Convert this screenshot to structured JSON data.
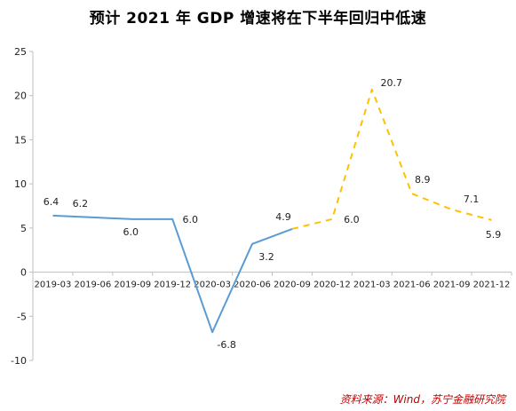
{
  "title": "预计 2021 年 GDP 增速将在下半年回归中低速",
  "source": "资料来源：Wind，苏宁金融研究院",
  "chart_data": {
    "type": "line",
    "title": "预计 2021 年 GDP 增速将在下半年回归中低速",
    "xlabel": "",
    "ylabel": "",
    "ylim": [
      -10,
      25
    ],
    "yticks": [
      -10,
      -5,
      0,
      5,
      10,
      15,
      20,
      25
    ],
    "grid": false,
    "categories": [
      "2019-03",
      "2019-06",
      "2019-09",
      "2019-12",
      "2020-03",
      "2020-06",
      "2020-09",
      "2020-12",
      "2021-03",
      "2021-06",
      "2021-09",
      "2021-12"
    ],
    "series": [
      {
        "style": "solid",
        "color": "#5b9bd5",
        "points": [
          [
            "2019-03",
            6.4
          ],
          [
            "2019-06",
            6.2
          ],
          [
            "2019-09",
            6.0
          ],
          [
            "2019-12",
            6.0
          ],
          [
            "2020-03",
            -6.8
          ],
          [
            "2020-06",
            3.2
          ],
          [
            "2020-09",
            4.9
          ]
        ]
      },
      {
        "style": "dashed",
        "color": "#ffc000",
        "points": [
          [
            "2020-09",
            4.9
          ],
          [
            "2020-12",
            6.0
          ],
          [
            "2021-03",
            20.7
          ],
          [
            "2021-06",
            8.9
          ],
          [
            "2021-09",
            7.1
          ],
          [
            "2021-12",
            5.9
          ]
        ]
      }
    ],
    "data_labels": [
      {
        "x": "2019-03",
        "y": 6.4,
        "text": "6.4"
      },
      {
        "x": "2019-06",
        "y": 6.2,
        "text": "6.2"
      },
      {
        "x": "2019-09",
        "y": 6.0,
        "text": "6.0"
      },
      {
        "x": "2019-12",
        "y": 6.0,
        "text": "6.0"
      },
      {
        "x": "2020-03",
        "y": -6.8,
        "text": "-6.8"
      },
      {
        "x": "2020-06",
        "y": 3.2,
        "text": "3.2"
      },
      {
        "x": "2020-09",
        "y": 4.9,
        "text": "4.9"
      },
      {
        "x": "2020-12",
        "y": 6.0,
        "text": "6.0"
      },
      {
        "x": "2021-03",
        "y": 20.7,
        "text": "20.7"
      },
      {
        "x": "2021-06",
        "y": 8.9,
        "text": "8.9"
      },
      {
        "x": "2021-09",
        "y": 7.1,
        "text": "7.1"
      },
      {
        "x": "2021-12",
        "y": 5.9,
        "text": "5.9"
      }
    ]
  }
}
